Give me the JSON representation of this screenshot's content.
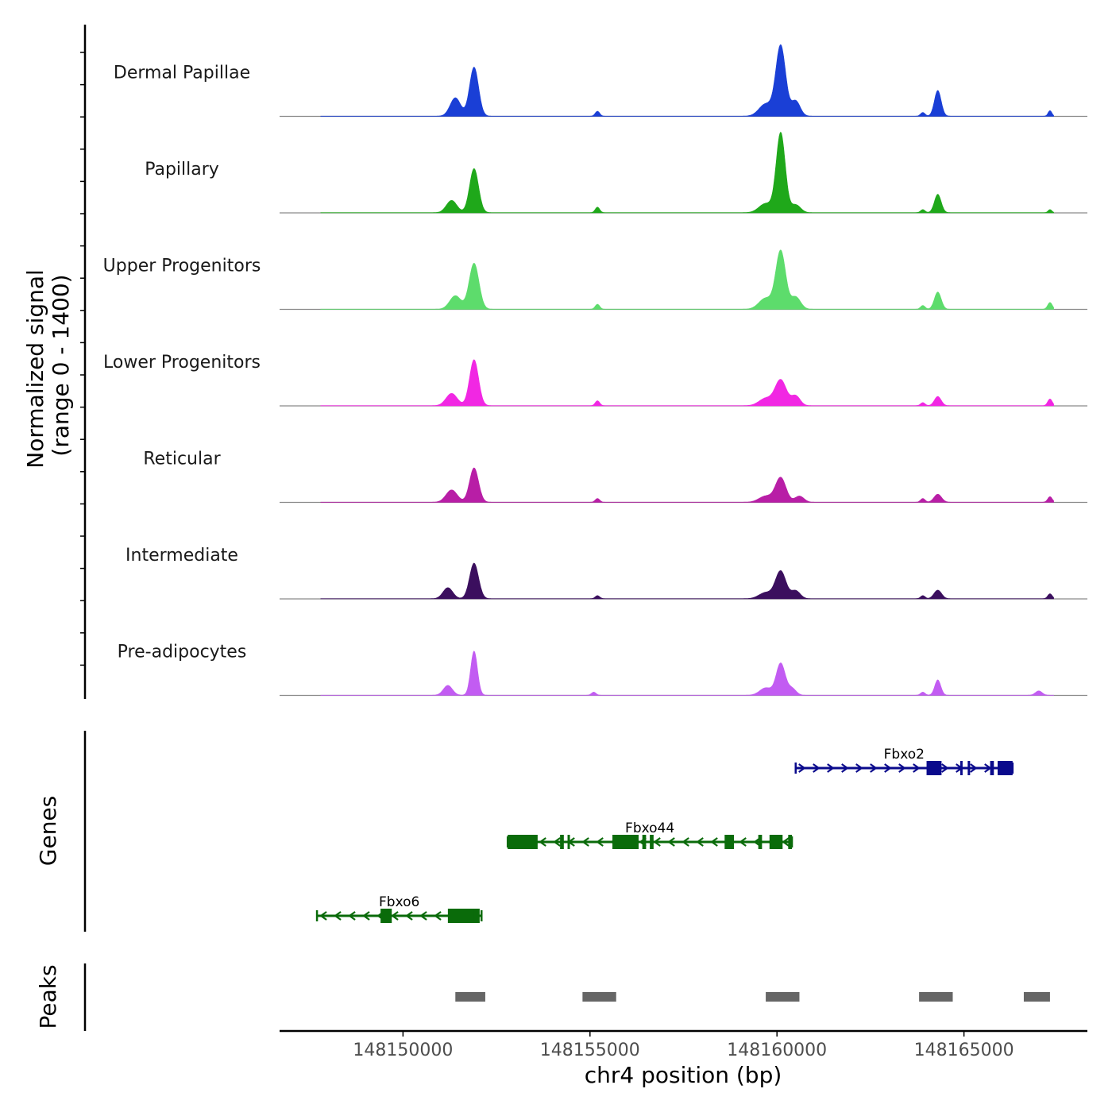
{
  "chart_data": {
    "type": "area",
    "title": "",
    "ylabel": "Normalized signal\n(range 0 - 1400)",
    "ylabel_lines": [
      "Normalized signal",
      "(range 0 - 1400)"
    ],
    "ylim": [
      0,
      1400
    ],
    "xlabel": "chr4 position (bp)",
    "xlim": [
      148146700,
      148168300
    ],
    "xticks": [
      148150000,
      148155000,
      148160000,
      148165000
    ],
    "xtick_labels": [
      "148150000",
      "148155000",
      "148160000",
      "148165000"
    ],
    "tracks": [
      {
        "name": "Dermal Papillae",
        "color": "#1a3fd6",
        "peaks": [
          {
            "x": 148151400,
            "h": 300,
            "w": 140
          },
          {
            "x": 148151900,
            "h": 800,
            "w": 120
          },
          {
            "x": 148155200,
            "h": 80,
            "w": 60
          },
          {
            "x": 148159700,
            "h": 200,
            "w": 180
          },
          {
            "x": 148160100,
            "h": 1150,
            "w": 130
          },
          {
            "x": 148160500,
            "h": 250,
            "w": 120
          },
          {
            "x": 148163900,
            "h": 60,
            "w": 60
          },
          {
            "x": 148164300,
            "h": 420,
            "w": 90
          },
          {
            "x": 148167300,
            "h": 90,
            "w": 50
          }
        ]
      },
      {
        "name": "Papillary",
        "color": "#1fa81a",
        "peaks": [
          {
            "x": 148151300,
            "h": 200,
            "w": 140
          },
          {
            "x": 148151900,
            "h": 720,
            "w": 120
          },
          {
            "x": 148155200,
            "h": 90,
            "w": 60
          },
          {
            "x": 148159700,
            "h": 150,
            "w": 180
          },
          {
            "x": 148160100,
            "h": 1300,
            "w": 120
          },
          {
            "x": 148160500,
            "h": 130,
            "w": 130
          },
          {
            "x": 148163900,
            "h": 50,
            "w": 60
          },
          {
            "x": 148164300,
            "h": 300,
            "w": 90
          },
          {
            "x": 148167300,
            "h": 50,
            "w": 50
          }
        ]
      },
      {
        "name": "Upper Progenitors",
        "color": "#5ddc6c",
        "peaks": [
          {
            "x": 148151400,
            "h": 220,
            "w": 150
          },
          {
            "x": 148151900,
            "h": 750,
            "w": 130
          },
          {
            "x": 148155200,
            "h": 80,
            "w": 60
          },
          {
            "x": 148159700,
            "h": 180,
            "w": 180
          },
          {
            "x": 148160100,
            "h": 950,
            "w": 130
          },
          {
            "x": 148160500,
            "h": 200,
            "w": 130
          },
          {
            "x": 148163900,
            "h": 60,
            "w": 60
          },
          {
            "x": 148164300,
            "h": 280,
            "w": 90
          },
          {
            "x": 148167300,
            "h": 110,
            "w": 60
          }
        ]
      },
      {
        "name": "Lower Progenitors",
        "color": "#f127e3",
        "peaks": [
          {
            "x": 148151300,
            "h": 200,
            "w": 150
          },
          {
            "x": 148151900,
            "h": 750,
            "w": 120
          },
          {
            "x": 148155200,
            "h": 80,
            "w": 60
          },
          {
            "x": 148159700,
            "h": 120,
            "w": 180
          },
          {
            "x": 148160100,
            "h": 420,
            "w": 150
          },
          {
            "x": 148160500,
            "h": 160,
            "w": 120
          },
          {
            "x": 148163900,
            "h": 50,
            "w": 60
          },
          {
            "x": 148164300,
            "h": 150,
            "w": 90
          },
          {
            "x": 148167300,
            "h": 110,
            "w": 60
          }
        ]
      },
      {
        "name": "Reticular",
        "color": "#b81ea6",
        "peaks": [
          {
            "x": 148151300,
            "h": 200,
            "w": 150
          },
          {
            "x": 148151900,
            "h": 560,
            "w": 120
          },
          {
            "x": 148155200,
            "h": 60,
            "w": 60
          },
          {
            "x": 148159700,
            "h": 100,
            "w": 180
          },
          {
            "x": 148160100,
            "h": 400,
            "w": 140
          },
          {
            "x": 148160600,
            "h": 100,
            "w": 120
          },
          {
            "x": 148163900,
            "h": 60,
            "w": 60
          },
          {
            "x": 148164300,
            "h": 130,
            "w": 100
          },
          {
            "x": 148167300,
            "h": 90,
            "w": 60
          }
        ]
      },
      {
        "name": "Intermediate",
        "color": "#3b0f5e",
        "peaks": [
          {
            "x": 148151200,
            "h": 180,
            "w": 130
          },
          {
            "x": 148151900,
            "h": 580,
            "w": 120
          },
          {
            "x": 148155200,
            "h": 50,
            "w": 60
          },
          {
            "x": 148159700,
            "h": 100,
            "w": 180
          },
          {
            "x": 148160100,
            "h": 450,
            "w": 140
          },
          {
            "x": 148160500,
            "h": 130,
            "w": 120
          },
          {
            "x": 148163900,
            "h": 50,
            "w": 60
          },
          {
            "x": 148164300,
            "h": 140,
            "w": 100
          },
          {
            "x": 148167300,
            "h": 80,
            "w": 60
          }
        ]
      },
      {
        "name": "Pre-adipocytes",
        "color": "#c25cf2",
        "peaks": [
          {
            "x": 148151200,
            "h": 160,
            "w": 120
          },
          {
            "x": 148151900,
            "h": 720,
            "w": 90
          },
          {
            "x": 148155100,
            "h": 50,
            "w": 60
          },
          {
            "x": 148159700,
            "h": 120,
            "w": 160
          },
          {
            "x": 148160100,
            "h": 520,
            "w": 120
          },
          {
            "x": 148160400,
            "h": 110,
            "w": 110
          },
          {
            "x": 148163900,
            "h": 50,
            "w": 60
          },
          {
            "x": 148164300,
            "h": 250,
            "w": 80
          },
          {
            "x": 148167000,
            "h": 70,
            "w": 90
          }
        ]
      }
    ],
    "genes_label": "Genes",
    "genes": [
      {
        "name": "Fbxo2",
        "strand": "+",
        "color": "#0a0a8c",
        "start": 148160500,
        "end": 148166300,
        "exons": [
          [
            148164000,
            148164400
          ],
          [
            148164900,
            148164950
          ],
          [
            148165100,
            148165150
          ],
          [
            148165700,
            148165800
          ],
          [
            148165900,
            148166300
          ]
        ]
      },
      {
        "name": "Fbxo44",
        "strand": "-",
        "color": "#0a6b0a",
        "start": 148152800,
        "end": 148160400,
        "exons": [
          [
            148152800,
            148153600
          ],
          [
            148154200,
            148154300
          ],
          [
            148154400,
            148154450
          ],
          [
            148155600,
            148156300
          ],
          [
            148156400,
            148156500
          ],
          [
            148156600,
            148156700
          ],
          [
            148158600,
            148158850
          ],
          [
            148159500,
            148159600
          ],
          [
            148159800,
            148160150
          ],
          [
            148160300,
            148160400
          ]
        ]
      },
      {
        "name": "Fbxo6",
        "strand": "-",
        "color": "#0a6b0a",
        "start": 148147700,
        "end": 148152100,
        "exons": [
          [
            148149400,
            148149700
          ],
          [
            148151200,
            148151950
          ],
          [
            148151900,
            148152050
          ]
        ]
      }
    ],
    "peaks_label": "Peaks",
    "peak_regions": [
      [
        148151400,
        148152200
      ],
      [
        148154800,
        148155700
      ],
      [
        148159700,
        148160600
      ],
      [
        148163800,
        148164700
      ],
      [
        148166600,
        148167300
      ]
    ],
    "colors": {
      "axis": "#000000",
      "baseline": "#8a8a8a",
      "peak_box": "#666666",
      "tick_label": "#4d4d4d"
    }
  }
}
